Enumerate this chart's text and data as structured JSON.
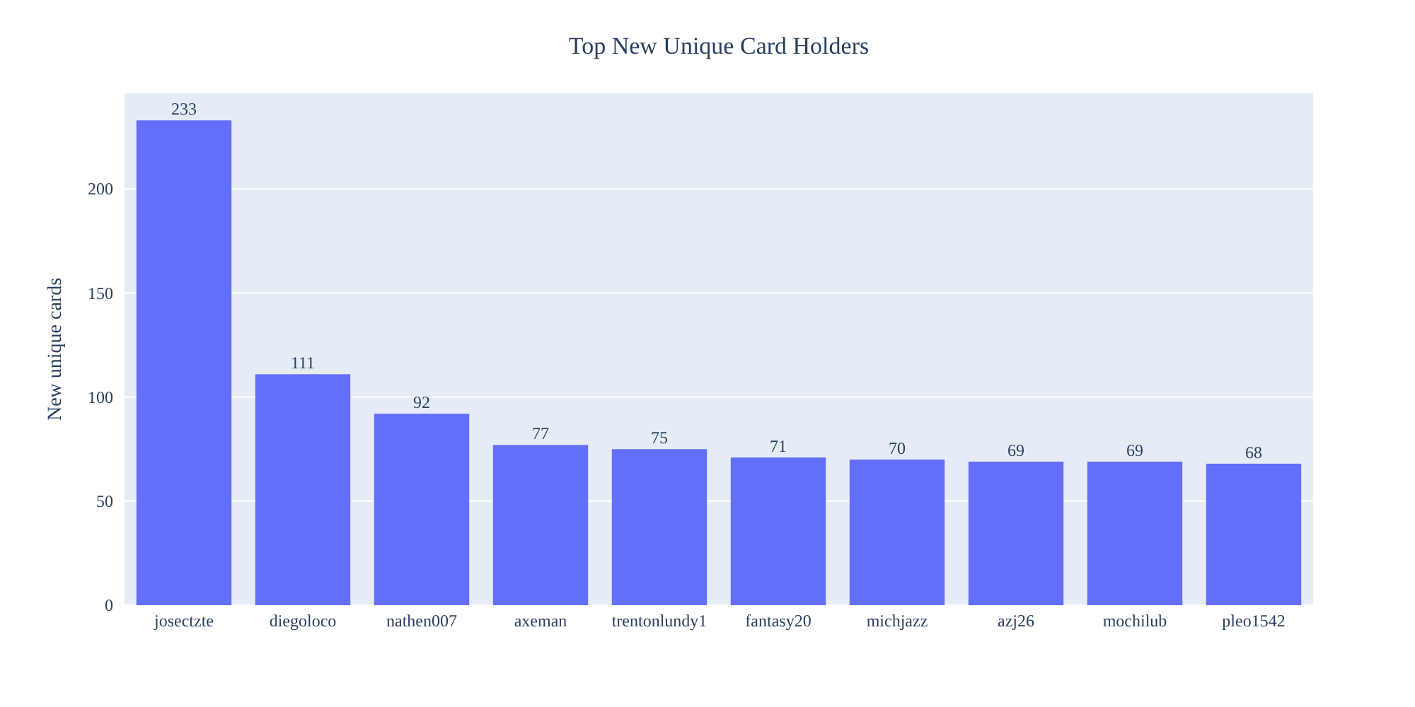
{
  "chart_data": {
    "type": "bar",
    "title": "Top New Unique Card Holders",
    "ylabel": "New unique cards",
    "categories": [
      "josectzte",
      "diegoloco",
      "nathen007",
      "axeman",
      "trentonlundy1",
      "fantasy20",
      "michjazz",
      "azj26",
      "mochilub",
      "pleo1542"
    ],
    "values": [
      233,
      111,
      92,
      77,
      75,
      71,
      70,
      69,
      69,
      68
    ],
    "color": "#636efa",
    "ylim": [
      0,
      246
    ],
    "yticks": [
      0,
      50,
      100,
      150,
      200
    ],
    "grid": "y",
    "data_labels": true
  }
}
